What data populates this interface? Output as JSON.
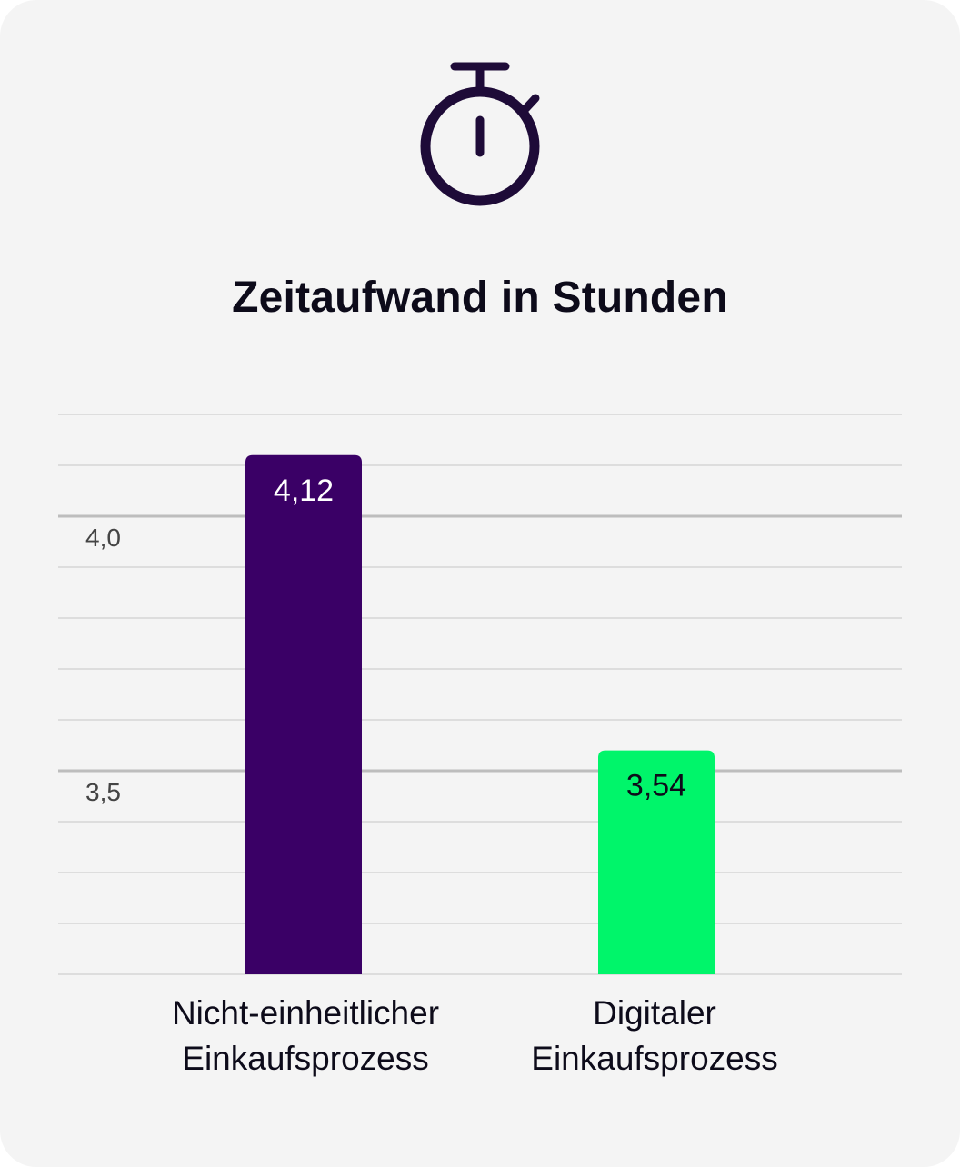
{
  "header": {
    "icon": "stopwatch-icon",
    "title": "Zeitaufwand in Stunden"
  },
  "colors": {
    "background": "#f4f4f4",
    "icon": "#1e0b38",
    "grid_minor": "#cfcfcf",
    "grid_major": "#bdbdbd",
    "tick_text": "#444444"
  },
  "chart_data": {
    "type": "bar",
    "title": "Zeitaufwand in Stunden",
    "xlabel": "",
    "ylabel": "",
    "ylim": [
      3.1,
      4.2
    ],
    "minor_step": 0.1,
    "grid": true,
    "yticks": [
      {
        "value": 4.0,
        "label": "4,0"
      },
      {
        "value": 3.5,
        "label": "3,5"
      }
    ],
    "categories": [
      "Nicht-einheitlicher Einkaufsprozess",
      "Digitaler Einkaufsprozess"
    ],
    "category_lines": [
      [
        "Nicht-einheitlicher",
        "Einkaufsprozess"
      ],
      [
        "Digitaler",
        "Einkaufsprozess"
      ]
    ],
    "values": [
      4.12,
      3.54
    ],
    "value_labels": [
      "4,12",
      "3,54"
    ],
    "bar_colors": [
      "#3a0066",
      "#00f56a"
    ],
    "value_label_colors": [
      "#ffffff",
      "#0d0b1a"
    ]
  }
}
